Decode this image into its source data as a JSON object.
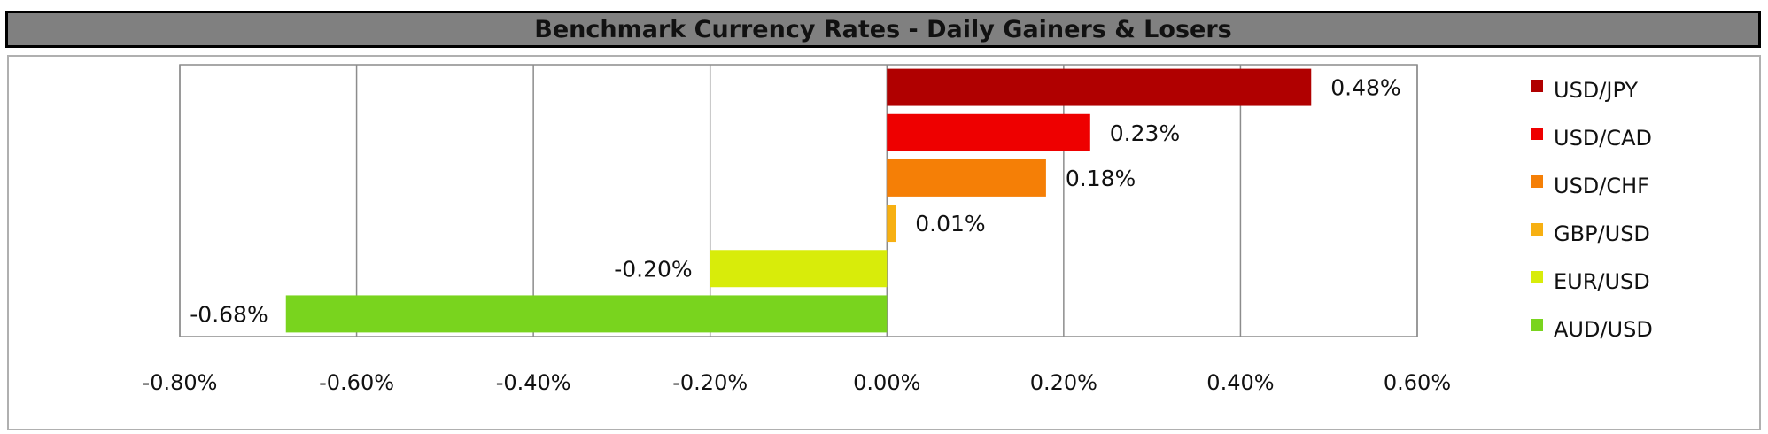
{
  "title": "Benchmark Currency Rates - Daily Gainers & Losers",
  "chart_data": {
    "type": "bar",
    "orientation": "horizontal",
    "title": "Benchmark Currency Rates - Daily Gainers & Losers",
    "categories": [
      "USD/JPY",
      "USD/CAD",
      "USD/CHF",
      "GBP/USD",
      "EUR/USD",
      "AUD/USD"
    ],
    "values": [
      0.48,
      0.23,
      0.18,
      0.01,
      -0.2,
      -0.68
    ],
    "value_labels": [
      "0.48%",
      "0.23%",
      "0.18%",
      "0.01%",
      "-0.20%",
      "-0.68%"
    ],
    "colors": [
      "#b00000",
      "#ee0000",
      "#f57f06",
      "#f7b012",
      "#d8ec0a",
      "#79d41e"
    ],
    "xlim": [
      -0.8,
      0.6
    ],
    "xticks": [
      -0.8,
      -0.6,
      -0.4,
      -0.2,
      0.0,
      0.2,
      0.4,
      0.6
    ],
    "xtick_labels": [
      "-0.80%",
      "-0.60%",
      "-0.40%",
      "-0.20%",
      "0.00%",
      "0.20%",
      "0.40%",
      "0.60%"
    ],
    "grid": "vertical",
    "legend": "right",
    "xlabel": "",
    "ylabel": ""
  }
}
